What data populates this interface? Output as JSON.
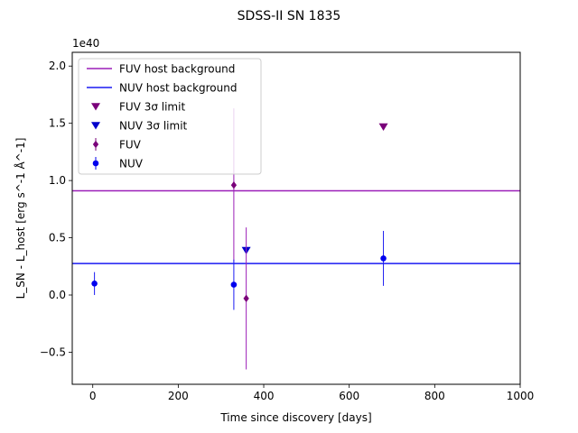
{
  "chart_data": {
    "type": "scatter",
    "title": "SDSS-II SN 1835",
    "xlabel": "Time since discovery [days]",
    "ylabel": "L_SN - L_host [erg s^-1 Å^-1]",
    "y_offset_label": "1e40",
    "y_unit_multiplier": 1e+40,
    "xlim": [
      -48,
      1000
    ],
    "ylim": [
      -0.78,
      2.12
    ],
    "xticks": [
      0,
      200,
      400,
      600,
      800,
      1000
    ],
    "xtick_labels": [
      "0",
      "200",
      "400",
      "600",
      "800",
      "1000"
    ],
    "yticks": [
      -0.5,
      0.0,
      0.5,
      1.0,
      1.5,
      2.0
    ],
    "ytick_labels": [
      "−0.5",
      "0.0",
      "0.5",
      "1.0",
      "1.5",
      "2.0"
    ],
    "grid": false,
    "legend_position": "top-left",
    "legend": [
      {
        "label": "FUV host background",
        "marker": "line",
        "color": "#9b1fb8"
      },
      {
        "label": "NUV host background",
        "marker": "line",
        "color": "#1a1af2"
      },
      {
        "label": "FUV 3σ limit",
        "marker": "triangle-down",
        "color": "#7a007a"
      },
      {
        "label": "NUV 3σ limit",
        "marker": "triangle-down",
        "color": "#0000cc"
      },
      {
        "label": "FUV",
        "marker": "diamond-errorbar",
        "color": "#7a007a"
      },
      {
        "label": "NUV",
        "marker": "circle-errorbar",
        "color": "#0000ee"
      }
    ],
    "series": [
      {
        "name": "FUV host background",
        "kind": "hline",
        "y": 0.91,
        "color": "#9b1fb8"
      },
      {
        "name": "NUV host background",
        "kind": "hline",
        "y": 0.275,
        "color": "#1a1af2"
      },
      {
        "name": "FUV 3σ limit",
        "kind": "upper_limit",
        "marker": "triangle-down",
        "color": "#7a007a",
        "points": [
          {
            "x": 680,
            "y": 1.47
          }
        ]
      },
      {
        "name": "NUV 3σ limit",
        "kind": "upper_limit",
        "marker": "triangle-down",
        "color": "#0000cc",
        "points": [
          {
            "x": 359,
            "y": 0.39
          }
        ]
      },
      {
        "name": "FUV",
        "kind": "errorbar",
        "marker": "diamond",
        "color": "#7a007a",
        "errcolor": "#9b1fb8",
        "points": [
          {
            "x": 330,
            "y": 0.96,
            "err": 0.67
          },
          {
            "x": 359,
            "y": -0.03,
            "err": 0.62
          }
        ]
      },
      {
        "name": "NUV",
        "kind": "errorbar",
        "marker": "circle",
        "color": "#0000ee",
        "errcolor": "#1a1af2",
        "points": [
          {
            "x": 4,
            "y": 0.1,
            "err": 0.1
          },
          {
            "x": 330,
            "y": 0.09,
            "err": 0.22
          },
          {
            "x": 680,
            "y": 0.32,
            "err": 0.24
          }
        ]
      }
    ]
  }
}
